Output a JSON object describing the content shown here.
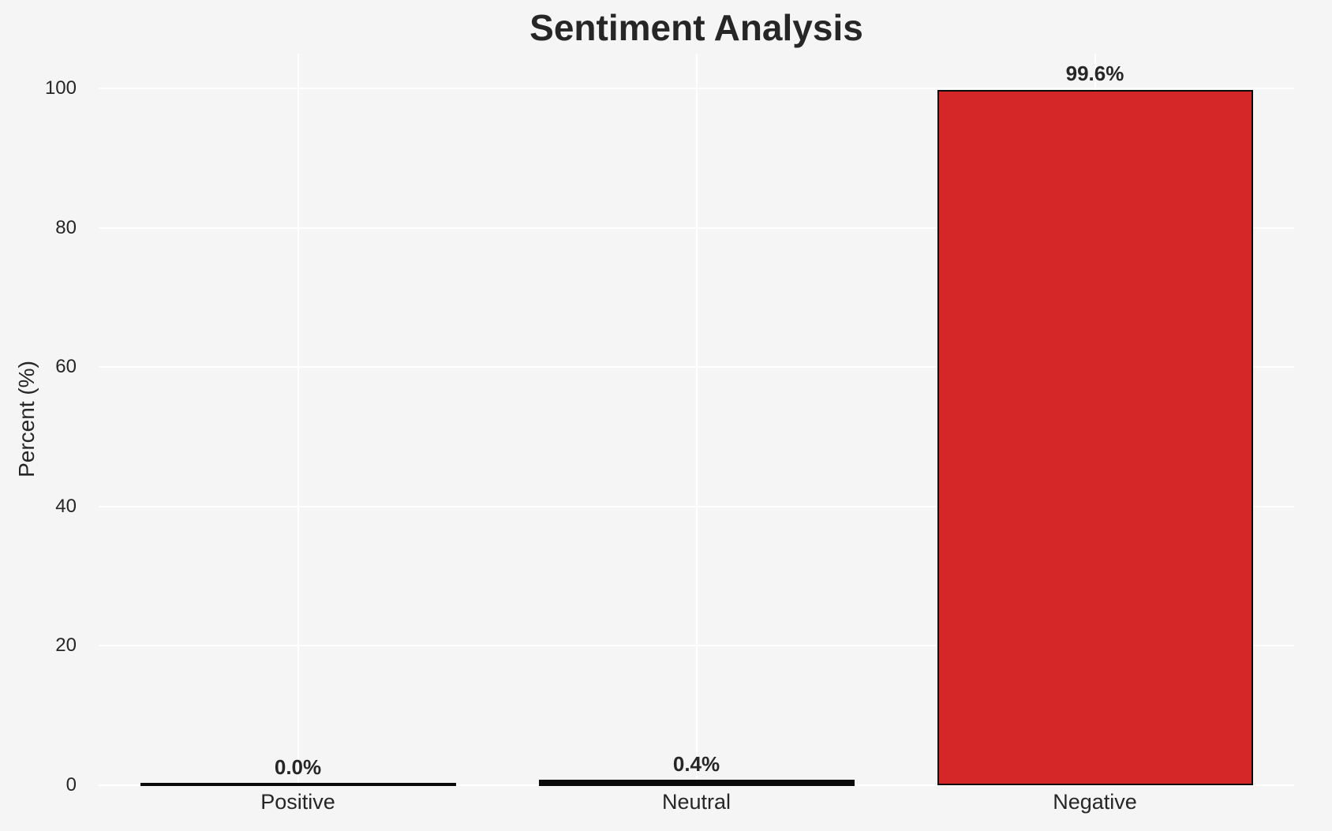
{
  "chart_data": {
    "type": "bar",
    "title": "Sentiment Analysis",
    "categories": [
      "Positive",
      "Neutral",
      "Negative"
    ],
    "values": [
      0.0,
      0.4,
      99.6
    ],
    "value_labels": [
      "0.0%",
      "0.4%",
      "99.6%"
    ],
    "xlabel": "",
    "ylabel": "Percent (%)",
    "ylim": [
      0,
      105
    ],
    "yticks": [
      0,
      20,
      40,
      60,
      80,
      100
    ],
    "ytick_labels": [
      "0",
      "20",
      "40",
      "60",
      "80",
      "100"
    ],
    "grid": true,
    "legend_position": "none",
    "styles": {
      "figure_background": "#f5f5f6",
      "gridline_color": "#ffffff",
      "bar_fill_colors": [
        "transparent",
        "transparent",
        "#d62728"
      ],
      "bar_edge_color": "#0a0a0a",
      "text_color": "#262626"
    }
  }
}
